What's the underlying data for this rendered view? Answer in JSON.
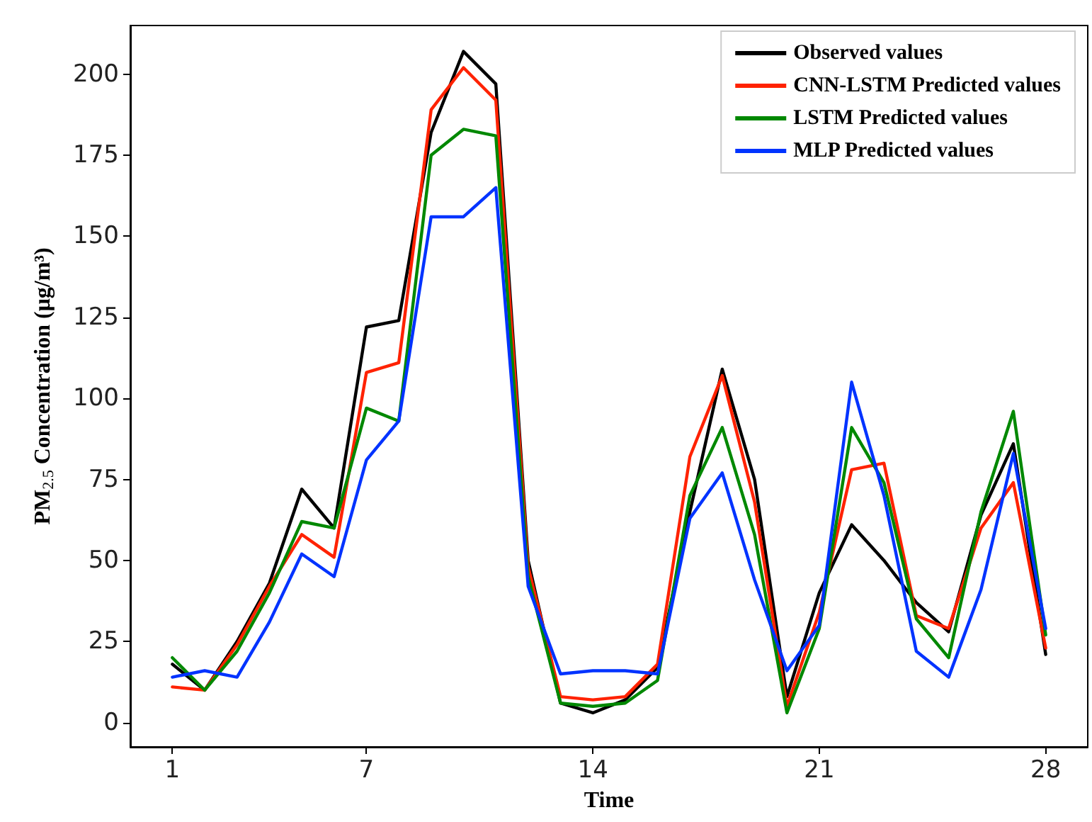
{
  "chart_data": {
    "type": "line",
    "xlabel": "Time",
    "ylabel": "PM$_{2.5}$ Concentration (μg/m³)",
    "x": [
      1,
      2,
      3,
      4,
      5,
      6,
      7,
      8,
      9,
      10,
      11,
      12,
      13,
      14,
      15,
      16,
      17,
      18,
      19,
      20,
      21,
      22,
      23,
      24,
      25,
      26,
      27,
      28
    ],
    "series": [
      {
        "name": "Observed values",
        "color": "#000000",
        "values": [
          18,
          10,
          25,
          43,
          72,
          60,
          122,
          124,
          182,
          207,
          197,
          50,
          6,
          3,
          7,
          17,
          65,
          109,
          75,
          8,
          40,
          61,
          50,
          37,
          28,
          64,
          86,
          21
        ]
      },
      {
        "name": "CNN-LSTM Predicted values",
        "color": "#ff2200",
        "values": [
          11,
          10,
          24,
          42,
          58,
          51,
          108,
          111,
          189,
          202,
          192,
          48,
          8,
          7,
          8,
          18,
          82,
          107,
          68,
          5,
          34,
          78,
          80,
          33,
          29,
          60,
          74,
          23
        ]
      },
      {
        "name": "LSTM Predicted values",
        "color": "#008800",
        "values": [
          20,
          10,
          22,
          40,
          62,
          60,
          97,
          93,
          175,
          183,
          181,
          45,
          6,
          5,
          6,
          13,
          70,
          91,
          58,
          3,
          29,
          91,
          74,
          32,
          20,
          65,
          96,
          27
        ]
      },
      {
        "name": "MLP Predicted values",
        "color": "#0033ff",
        "values": [
          14,
          16,
          14,
          31,
          52,
          45,
          81,
          93,
          156,
          156,
          165,
          42,
          15,
          16,
          16,
          15,
          63,
          77,
          44,
          16,
          30,
          105,
          70,
          22,
          14,
          41,
          83,
          29
        ]
      }
    ],
    "xlim": [
      -0.3,
      29.3
    ],
    "xticks": [
      1,
      7,
      14,
      21,
      28
    ],
    "ylim": [
      -7.5,
      215
    ],
    "yticks": [
      0,
      25,
      50,
      75,
      100,
      125,
      150,
      175,
      200
    ],
    "grid": false,
    "legend": "top right",
    "marker": "none",
    "line_style": "solid"
  }
}
